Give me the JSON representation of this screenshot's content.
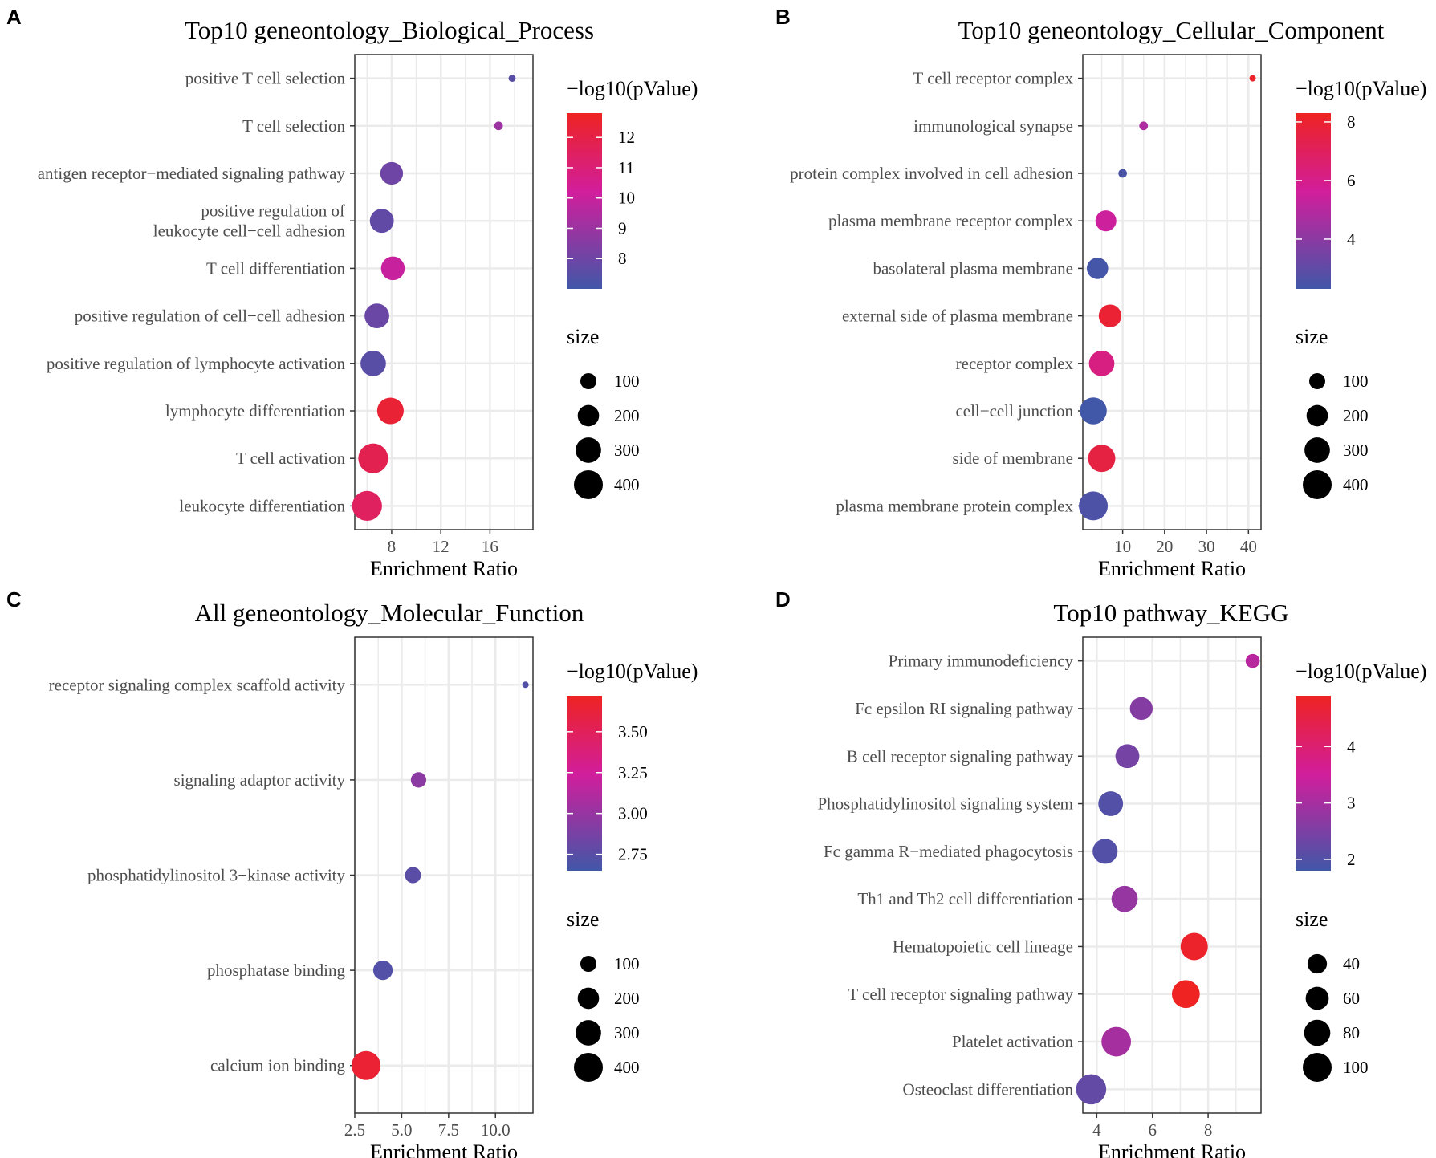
{
  "chart_data": [
    {
      "panel_label": "A",
      "type": "scatter",
      "title": "Top10 geneontology_Biological_Process",
      "xlabel": "Enrichment Ratio",
      "ylabel": "",
      "xlim": [
        5,
        19.5
      ],
      "xticks": [
        8,
        12,
        16
      ],
      "xtick_labels": [
        "8",
        "12",
        "16"
      ],
      "grid": true,
      "categories": [
        "positive T cell selection",
        "T cell selection",
        "antigen receptor−mediated signaling pathway",
        "positive regulation of\nleukocyte cell−cell adhesion",
        "T cell differentiation",
        "positive regulation of cell−cell adhesion",
        "positive regulation of lymphocyte activation",
        "lymphocyte differentiation",
        "T cell activation",
        "leukocyte differentiation"
      ],
      "points": [
        {
          "term": "positive T cell selection",
          "ratio": 17.8,
          "neglog10p": 7.5,
          "size": 30
        },
        {
          "term": "T cell selection",
          "ratio": 16.7,
          "neglog10p": 9.0,
          "size": 45
        },
        {
          "term": "antigen receptor−mediated signaling pathway",
          "ratio": 8.0,
          "neglog10p": 8.0,
          "size": 230
        },
        {
          "term": "positive regulation of\nleukocyte cell−cell adhesion",
          "ratio": 7.2,
          "neglog10p": 7.7,
          "size": 260
        },
        {
          "term": "T cell differentiation",
          "ratio": 8.1,
          "neglog10p": 10.0,
          "size": 255
        },
        {
          "term": "positive regulation of cell−cell adhesion",
          "ratio": 6.8,
          "neglog10p": 7.9,
          "size": 280
        },
        {
          "term": "positive regulation of lymphocyte activation",
          "ratio": 6.5,
          "neglog10p": 7.5,
          "size": 300
        },
        {
          "term": "lymphocyte differentiation",
          "ratio": 7.9,
          "neglog10p": 12.4,
          "size": 330
        },
        {
          "term": "T cell activation",
          "ratio": 6.5,
          "neglog10p": 11.8,
          "size": 430
        },
        {
          "term": "leukocyte differentiation",
          "ratio": 6.0,
          "neglog10p": 11.5,
          "size": 430
        }
      ],
      "color_legend": {
        "title": "−log10(pValue)",
        "min": 7.0,
        "max": 12.8,
        "ticks": [
          12,
          11,
          10,
          9,
          8
        ],
        "tick_labels": [
          "12",
          "11",
          "10",
          "9",
          "8"
        ]
      },
      "size_legend": {
        "title": "size",
        "values": [
          100,
          200,
          300,
          400
        ],
        "labels": [
          "100",
          "200",
          "300",
          "400"
        ]
      }
    },
    {
      "panel_label": "B",
      "type": "scatter",
      "title": "Top10 geneontology_Cellular_Component",
      "xlabel": "Enrichment Ratio",
      "ylabel": "",
      "xlim": [
        0.5,
        43
      ],
      "xticks": [
        10,
        20,
        30,
        40
      ],
      "xtick_labels": [
        "10",
        "20",
        "30",
        "40"
      ],
      "grid": true,
      "categories": [
        "T cell receptor complex",
        "immunological synapse",
        "protein complex involved in cell adhesion",
        "plasma membrane receptor complex",
        "basolateral plasma membrane",
        "external side of plasma membrane",
        "receptor complex",
        "cell−cell junction",
        "side of membrane",
        "plasma membrane protein complex"
      ],
      "points": [
        {
          "term": "T cell receptor complex",
          "ratio": 41.0,
          "neglog10p": 8.1,
          "size": 25
        },
        {
          "term": "immunological synapse",
          "ratio": 15.0,
          "neglog10p": 4.8,
          "size": 45
        },
        {
          "term": "protein complex involved in cell adhesion",
          "ratio": 10.0,
          "neglog10p": 2.5,
          "size": 45
        },
        {
          "term": "plasma membrane receptor complex",
          "ratio": 6.0,
          "neglog10p": 5.5,
          "size": 190
        },
        {
          "term": "basolateral plasma membrane",
          "ratio": 4.0,
          "neglog10p": 2.4,
          "size": 200
        },
        {
          "term": "external side of plasma membrane",
          "ratio": 7.0,
          "neglog10p": 7.9,
          "size": 230
        },
        {
          "term": "receptor complex",
          "ratio": 5.0,
          "neglog10p": 6.2,
          "size": 300
        },
        {
          "term": "cell−cell junction",
          "ratio": 3.0,
          "neglog10p": 2.3,
          "size": 340
        },
        {
          "term": "side of membrane",
          "ratio": 5.0,
          "neglog10p": 7.6,
          "size": 350
        },
        {
          "term": "plasma membrane protein complex",
          "ratio": 3.0,
          "neglog10p": 2.6,
          "size": 400
        }
      ],
      "color_legend": {
        "title": "−log10(pValue)",
        "min": 2.3,
        "max": 8.3,
        "ticks": [
          8,
          6,
          4
        ],
        "tick_labels": [
          "8",
          "6",
          "4"
        ]
      },
      "size_legend": {
        "title": "size",
        "values": [
          100,
          200,
          300,
          400
        ],
        "labels": [
          "100",
          "200",
          "300",
          "400"
        ]
      }
    },
    {
      "panel_label": "C",
      "type": "scatter",
      "title": "All geneontology_Molecular_Function",
      "xlabel": "Enrichment Ratio",
      "ylabel": "",
      "xlim": [
        2.5,
        12.0
      ],
      "xticks": [
        2.5,
        5.0,
        7.5,
        10.0
      ],
      "xtick_labels": [
        "2.5",
        "5.0",
        "7.5",
        "10.0"
      ],
      "grid": true,
      "categories": [
        "receptor signaling complex scaffold activity",
        "signaling adaptor activity",
        "phosphatidylinositol 3−kinase activity",
        "phosphatase binding",
        "calcium ion binding"
      ],
      "points": [
        {
          "term": "receptor signaling complex scaffold activity",
          "ratio": 11.6,
          "neglog10p": 2.72,
          "size": 25
        },
        {
          "term": "signaling adaptor activity",
          "ratio": 5.9,
          "neglog10p": 2.95,
          "size": 90
        },
        {
          "term": "phosphatidylinositol 3−kinase activity",
          "ratio": 5.6,
          "neglog10p": 2.75,
          "size": 100
        },
        {
          "term": "phosphatase binding",
          "ratio": 4.0,
          "neglog10p": 2.72,
          "size": 160
        },
        {
          "term": "calcium ion binding",
          "ratio": 3.1,
          "neglog10p": 3.65,
          "size": 400
        }
      ],
      "color_legend": {
        "title": "−log10(pValue)",
        "min": 2.65,
        "max": 3.72,
        "ticks": [
          3.5,
          3.25,
          3.0,
          2.75
        ],
        "tick_labels": [
          "3.50",
          "3.25",
          "3.00",
          "2.75"
        ]
      },
      "size_legend": {
        "title": "size",
        "values": [
          100,
          200,
          300,
          400
        ],
        "labels": [
          "100",
          "200",
          "300",
          "400"
        ]
      }
    },
    {
      "panel_label": "D",
      "type": "scatter",
      "title": "Top10 pathway_KEGG",
      "xlabel": "Enrichment Ratio",
      "ylabel": "",
      "xlim": [
        3.5,
        9.9
      ],
      "xticks": [
        4,
        6,
        8
      ],
      "xtick_labels": [
        "4",
        "6",
        "8"
      ],
      "grid": true,
      "categories": [
        "Primary immunodeficiency",
        "Fc epsilon RI signaling pathway",
        "B cell receptor signaling pathway",
        "Phosphatidylinositol signaling system",
        "Fc gamma R−mediated phagocytosis",
        "Th1 and Th2 cell differentiation",
        "Hematopoietic cell lineage",
        "T cell receptor signaling pathway",
        "Platelet activation",
        "Osteoclast differentiation"
      ],
      "points": [
        {
          "term": "Primary immunodeficiency",
          "ratio": 9.6,
          "neglog10p": 3.2,
          "size": 18
        },
        {
          "term": "Fc epsilon RI signaling pathway",
          "ratio": 5.6,
          "neglog10p": 2.6,
          "size": 58
        },
        {
          "term": "B cell receptor signaling pathway",
          "ratio": 5.1,
          "neglog10p": 2.4,
          "size": 65
        },
        {
          "term": "Phosphatidylinositol signaling system",
          "ratio": 4.5,
          "neglog10p": 2.0,
          "size": 70
        },
        {
          "term": "Fc gamma R−mediated phagocytosis",
          "ratio": 4.3,
          "neglog10p": 2.0,
          "size": 72
        },
        {
          "term": "Th1 and Th2 cell differentiation",
          "ratio": 5.0,
          "neglog10p": 2.8,
          "size": 80
        },
        {
          "term": "Hematopoietic cell lineage",
          "ratio": 7.5,
          "neglog10p": 4.8,
          "size": 88
        },
        {
          "term": "T cell receptor signaling pathway",
          "ratio": 7.2,
          "neglog10p": 4.9,
          "size": 92
        },
        {
          "term": "Platelet activation",
          "ratio": 4.7,
          "neglog10p": 3.0,
          "size": 105
        },
        {
          "term": "Osteoclast differentiation",
          "ratio": 3.8,
          "neglog10p": 2.2,
          "size": 110
        }
      ],
      "color_legend": {
        "title": "−log10(pValue)",
        "min": 1.8,
        "max": 4.9,
        "ticks": [
          4,
          3,
          2
        ],
        "tick_labels": [
          "4",
          "3",
          "2"
        ]
      },
      "size_legend": {
        "title": "size",
        "values": [
          40,
          60,
          80,
          100
        ],
        "labels": [
          "40",
          "60",
          "80",
          "100"
        ]
      }
    }
  ],
  "colors": {
    "low": "#4157a8",
    "mid": "#d11e9c",
    "high": "#ee2322",
    "grid": "#ebebeb",
    "axis": "#333333"
  }
}
